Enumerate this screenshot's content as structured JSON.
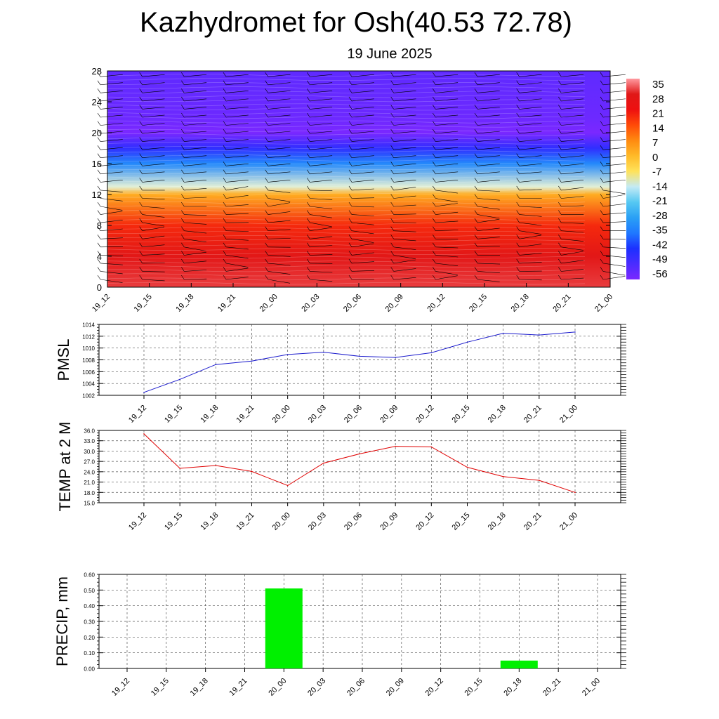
{
  "title": "Kazhydromet for Osh(40.53 72.78)",
  "subtitle": "19 June 2025",
  "time_labels": [
    "19_12",
    "19_15",
    "19_18",
    "19_21",
    "20_00",
    "20_03",
    "20_06",
    "20_09",
    "20_12",
    "20_15",
    "20_18",
    "20_21",
    "21_00"
  ],
  "chart_data": [
    {
      "type": "heatmap",
      "title": "",
      "xlabel": "",
      "ylabel": "",
      "x": [
        "19_12",
        "19_15",
        "19_18",
        "19_21",
        "20_00",
        "20_03",
        "20_06",
        "20_09",
        "20_12",
        "20_15",
        "20_18",
        "20_21",
        "21_00"
      ],
      "y_ticks": [
        0,
        4,
        8,
        12,
        16,
        20,
        24,
        28
      ],
      "ylim": [
        0,
        28
      ],
      "colorbar_labels": [
        "35",
        "28",
        "21",
        "14",
        "7",
        "0",
        "-7",
        "-14",
        "-21",
        "-28",
        "-35",
        "-42",
        "-49",
        "-56"
      ],
      "profile": [
        {
          "level": 0,
          "value": 30
        },
        {
          "level": 4,
          "value": 27
        },
        {
          "level": 8,
          "value": 18
        },
        {
          "level": 12,
          "value": 2
        },
        {
          "level": 13,
          "value": -12
        },
        {
          "level": 16,
          "value": -32
        },
        {
          "level": 18,
          "value": -45
        },
        {
          "level": 20,
          "value": -56
        },
        {
          "level": 22,
          "value": -54
        },
        {
          "level": 28,
          "value": -52
        }
      ],
      "overlay": "wind barbs"
    },
    {
      "type": "line",
      "ylabel": "PMSL",
      "x": [
        "19_12",
        "19_15",
        "19_18",
        "19_21",
        "20_00",
        "20_03",
        "20_06",
        "20_09",
        "20_12",
        "20_15",
        "20_18",
        "20_21",
        "21_00"
      ],
      "values": [
        1002.5,
        1004.7,
        1007.2,
        1007.8,
        1008.9,
        1009.3,
        1008.6,
        1008.4,
        1009.2,
        1011.0,
        1012.5,
        1012.2,
        1012.7
      ],
      "y_ticks": [
        "1002",
        "1004",
        "1006",
        "1008",
        "1010",
        "1012",
        "1014"
      ],
      "ylim": [
        1002,
        1014
      ],
      "grid": true,
      "color": "#1a1acc"
    },
    {
      "type": "line",
      "ylabel": "TEMP at 2 M",
      "x": [
        "19_12",
        "19_15",
        "19_18",
        "19_21",
        "20_00",
        "20_03",
        "20_06",
        "20_09",
        "20_12",
        "20_15",
        "20_18",
        "20_21",
        "21_00"
      ],
      "values": [
        35.0,
        25.0,
        25.8,
        24.1,
        20.0,
        26.5,
        29.2,
        31.4,
        31.2,
        25.3,
        22.6,
        21.5,
        18.0
      ],
      "y_ticks": [
        "15.0",
        "18.0",
        "21.0",
        "24.0",
        "27.0",
        "30.0",
        "33.0",
        "36.0"
      ],
      "ylim": [
        15,
        36
      ],
      "grid": true,
      "color": "#e00000"
    },
    {
      "type": "bar",
      "ylabel": "PRECIP, mm",
      "categories": [
        "19_12",
        "19_15",
        "19_18",
        "19_21",
        "20_00",
        "20_03",
        "20_06",
        "20_09",
        "20_12",
        "20_15",
        "20_18",
        "20_21",
        "21_00"
      ],
      "values": [
        0,
        0,
        0,
        0,
        0.51,
        0,
        0,
        0,
        0,
        0,
        0.05,
        0,
        0
      ],
      "y_ticks": [
        "0.00",
        "0.10",
        "0.20",
        "0.30",
        "0.40",
        "0.50",
        "0.60"
      ],
      "ylim": [
        0,
        0.6
      ],
      "grid": true,
      "color": "#00f000"
    }
  ]
}
